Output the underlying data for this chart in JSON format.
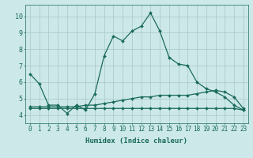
{
  "xlabel": "Humidex (Indice chaleur)",
  "xlim": [
    -0.5,
    23.5
  ],
  "ylim": [
    3.5,
    10.7
  ],
  "yticks": [
    4,
    5,
    6,
    7,
    8,
    9,
    10
  ],
  "xticks": [
    0,
    1,
    2,
    3,
    4,
    5,
    6,
    7,
    8,
    9,
    10,
    11,
    12,
    13,
    14,
    15,
    16,
    17,
    18,
    19,
    20,
    21,
    22,
    23
  ],
  "bg_color": "#cce8e8",
  "line_color": "#1a6b5a",
  "grid_color": "#a8c8c8",
  "series1_x": [
    0,
    1,
    2,
    3,
    4,
    5,
    6,
    7,
    8,
    9,
    10,
    11,
    12,
    13,
    14,
    15,
    16,
    17,
    18,
    19,
    20,
    21,
    22,
    23
  ],
  "series1_y": [
    6.5,
    5.9,
    4.6,
    4.6,
    4.1,
    4.6,
    4.3,
    5.3,
    7.6,
    8.8,
    8.5,
    9.1,
    9.4,
    10.2,
    9.1,
    7.5,
    7.1,
    7.0,
    6.0,
    5.6,
    5.4,
    5.1,
    4.6,
    4.3
  ],
  "series2_x": [
    0,
    1,
    2,
    3,
    4,
    5,
    6,
    7,
    8,
    9,
    10,
    11,
    12,
    13,
    14,
    15,
    16,
    17,
    18,
    19,
    20,
    21,
    22,
    23
  ],
  "series2_y": [
    4.4,
    4.4,
    4.4,
    4.4,
    4.4,
    4.4,
    4.4,
    4.4,
    4.4,
    4.4,
    4.4,
    4.4,
    4.4,
    4.4,
    4.4,
    4.4,
    4.4,
    4.4,
    4.4,
    4.4,
    4.4,
    4.4,
    4.4,
    4.3
  ],
  "series3_x": [
    0,
    1,
    2,
    3,
    4,
    5,
    6,
    7,
    8,
    9,
    10,
    11,
    12,
    13,
    14,
    15,
    16,
    17,
    18,
    19,
    20,
    21,
    22,
    23
  ],
  "series3_y": [
    4.5,
    4.5,
    4.5,
    4.5,
    4.5,
    4.5,
    4.6,
    4.6,
    4.7,
    4.8,
    4.9,
    5.0,
    5.1,
    5.1,
    5.2,
    5.2,
    5.2,
    5.2,
    5.3,
    5.4,
    5.5,
    5.4,
    5.1,
    4.4
  ],
  "tick_color": "#1a6b5a",
  "tick_fontsize": 5.5,
  "xlabel_fontsize": 6.5,
  "marker_size": 2.0,
  "line_width": 0.9
}
